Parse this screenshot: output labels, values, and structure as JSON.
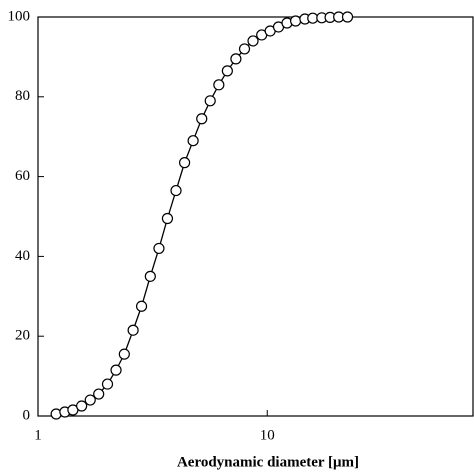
{
  "chart_data": {
    "type": "line",
    "x_label": "Aerodynamic diameter [μm]",
    "xscale": "log",
    "xlim": [
      1,
      79
    ],
    "xticks": [
      1,
      10
    ],
    "ylim": [
      0,
      100
    ],
    "yticks": [
      0,
      20,
      40,
      60,
      80,
      100
    ],
    "series": [
      {
        "color": "#000000",
        "x": [
          1.2,
          1.31,
          1.42,
          1.55,
          1.69,
          1.84,
          2.01,
          2.19,
          2.38,
          2.6,
          2.83,
          3.09,
          3.37,
          3.67,
          4.0,
          4.36,
          4.75,
          5.18,
          5.64,
          6.15,
          6.7,
          7.3,
          7.96,
          8.67,
          9.46,
          10.3,
          11.2,
          12.2,
          13.3,
          14.6,
          15.8,
          17.3,
          18.8,
          20.5,
          22.4
        ],
        "values": [
          0.5,
          1,
          1.5,
          2.5,
          4,
          5.5,
          8,
          11.5,
          15.5,
          21.5,
          27.5,
          35,
          42,
          49.5,
          56.5,
          63.5,
          69,
          74.5,
          79,
          83,
          86.5,
          89.5,
          92,
          94,
          95.5,
          96.5,
          97.5,
          98.5,
          99,
          99.5,
          99.7,
          99.8,
          99.9,
          100,
          100
        ]
      }
    ]
  }
}
